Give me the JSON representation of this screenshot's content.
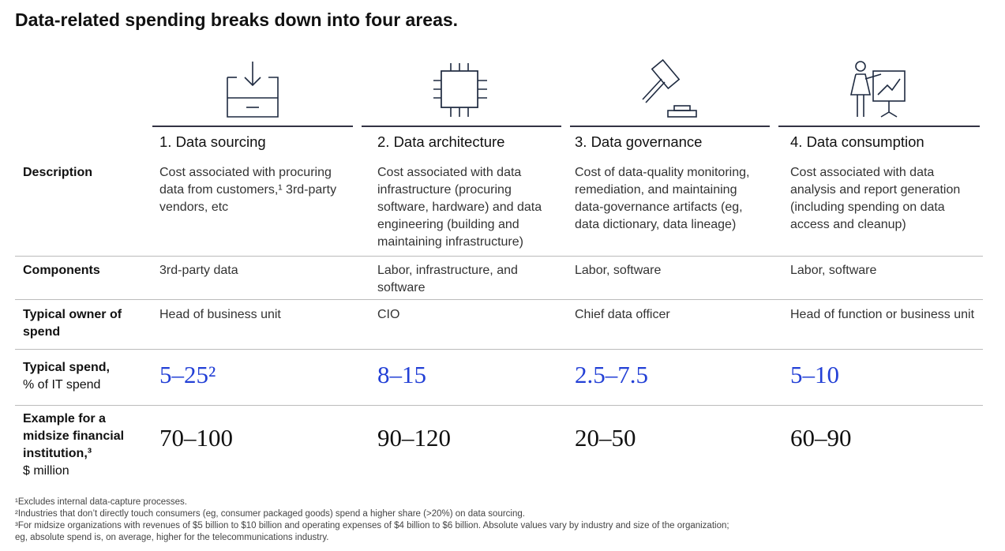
{
  "title": "Data-related spending breaks down into four areas.",
  "columns": [
    "1. Data sourcing",
    "2. Data architecture",
    "3. Data governance",
    "4. Data consumption"
  ],
  "rows": [
    {
      "label": "Description",
      "cells": [
        "Cost associated with procuring data from customers,¹ 3rd-party vendors, etc",
        "Cost associated with data infrastructure (procuring software, hardware) and data engineering (building and maintaining infrastructure)",
        "Cost of data-quality monitoring, remediation, and maintaining data-governance artifacts (eg, data dictionary, data lineage)",
        "Cost associated with data analysis and report generation (including spending on data access and cleanup)"
      ]
    },
    {
      "label": "Components",
      "cells": [
        "3rd-party data",
        "Labor, infrastructure, and software",
        "Labor, software",
        "Labor, software"
      ]
    },
    {
      "label": "Typical owner of spend",
      "cells": [
        "Head of business unit",
        "CIO",
        "Chief data officer",
        "Head of function or business unit"
      ]
    },
    {
      "label": "Typical spend,",
      "unit": "% of IT spend",
      "cells": [
        "5–25²",
        "8–15",
        "2.5–7.5",
        "5–10"
      ]
    },
    {
      "label": "Example for a midsize financial institution,³",
      "unit": "$ million",
      "cells": [
        "70–100",
        "90–120",
        "20–50",
        "60–90"
      ]
    }
  ],
  "footnotes": [
    "¹Excludes internal data-capture processes.",
    "²Industries that don’t directly touch consumers (eg, consumer packaged goods) spend a higher share (>20%) on data sourcing.",
    "³For midsize organizations with revenues of $5 billion to $10 billion and operating expenses of $4 billion to $6 billion. Absolute values vary by industry and size of the organization; eg, absolute spend is, on average, higher for the telecommunications industry."
  ]
}
